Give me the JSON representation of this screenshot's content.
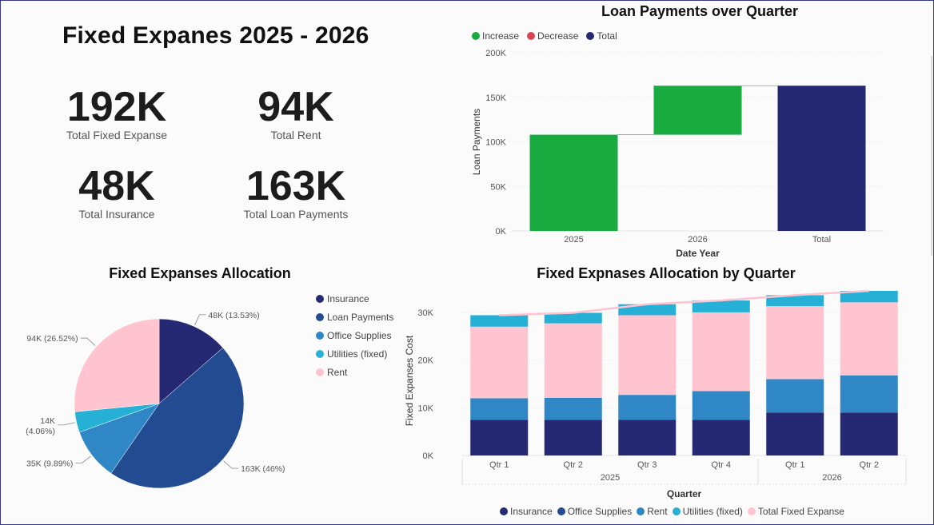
{
  "dashboard": {
    "title": "Fixed Expanes 2025 - 2026",
    "kpis": [
      {
        "value": "192K",
        "label": "Total Fixed Expanse"
      },
      {
        "value": "94K",
        "label": "Total Rent"
      },
      {
        "value": "48K",
        "label": "Total Insurance"
      },
      {
        "value": "163K",
        "label": "Total Loan Payments"
      }
    ]
  },
  "colors": {
    "increase": "#1aab40",
    "decrease": "#d64550",
    "total": "#252872",
    "insurance": "#252872",
    "loan": "#224b91",
    "office": "#2f88c5",
    "utilities": "#26b0d6",
    "rent": "#ffc4d0",
    "line": "#ffc4d0"
  },
  "chart_data": [
    {
      "type": "waterfall",
      "title": "Loan Payments over Quarter",
      "legend": [
        "Increase",
        "Decrease",
        "Total"
      ],
      "categories": [
        "2025",
        "2026",
        "Total"
      ],
      "steps": [
        {
          "label": "2025",
          "kind": "increase",
          "start": 0,
          "end": 108000
        },
        {
          "label": "2026",
          "kind": "increase",
          "start": 108000,
          "end": 163000
        },
        {
          "label": "Total",
          "kind": "total",
          "start": 0,
          "end": 163000
        }
      ],
      "xlabel": "Date Year",
      "ylabel": "Loan Payments",
      "ylim": [
        0,
        200000
      ],
      "yticks": [
        0,
        50000,
        100000,
        150000,
        200000
      ],
      "ytick_labels": [
        "0K",
        "50K",
        "100K",
        "150K",
        "200K"
      ]
    },
    {
      "type": "pie",
      "title": "Fixed Expanses Allocation",
      "slices": [
        {
          "name": "Insurance",
          "value": 48000,
          "label": "48K (13.53%)"
        },
        {
          "name": "Loan Payments",
          "value": 163000,
          "label": "163K (46%)"
        },
        {
          "name": "Office Supplies",
          "value": 35000,
          "label": "35K (9.89%)"
        },
        {
          "name": "Utilities (fixed)",
          "value": 14000,
          "label_line1": "14K",
          "label_line2": "(4.06%)"
        },
        {
          "name": "Rent",
          "value": 94000,
          "label": "94K (26.52%)"
        }
      ]
    },
    {
      "type": "bar",
      "stacked": true,
      "title": "Fixed Expnases Allocation by Quarter",
      "categories": [
        "Qtr 1",
        "Qtr 2",
        "Qtr 3",
        "Qtr 4",
        "Qtr 1",
        "Qtr 2"
      ],
      "groups": [
        {
          "label": "2025",
          "span": 4
        },
        {
          "label": "2026",
          "span": 2
        }
      ],
      "series": [
        {
          "name": "Insurance",
          "values": [
            7500,
            7500,
            7500,
            7500,
            9000,
            9000
          ]
        },
        {
          "name": "Office Supplies",
          "values": [
            4500,
            4600,
            5200,
            6000,
            7000,
            7800
          ]
        },
        {
          "name": "Rent",
          "values": [
            15000,
            15600,
            16700,
            16500,
            15300,
            15300
          ]
        },
        {
          "name": "Utilities (fixed)",
          "values": [
            2400,
            2200,
            2300,
            2500,
            2300,
            2400
          ]
        }
      ],
      "line_series": {
        "name": "Total Fixed Expanse",
        "values": [
          29400,
          29900,
          31700,
          32500,
          33600,
          34500
        ]
      },
      "xlabel": "Quarter",
      "ylabel": "Fixed Expanses Cost",
      "ylim": [
        0,
        34000
      ],
      "yticks": [
        0,
        10000,
        20000,
        30000
      ],
      "ytick_labels": [
        "0K",
        "10K",
        "20K",
        "30K"
      ],
      "legend": [
        "Insurance",
        "Office Supplies",
        "Rent",
        "Utilities (fixed)",
        "Total Fixed Expanse"
      ]
    }
  ]
}
